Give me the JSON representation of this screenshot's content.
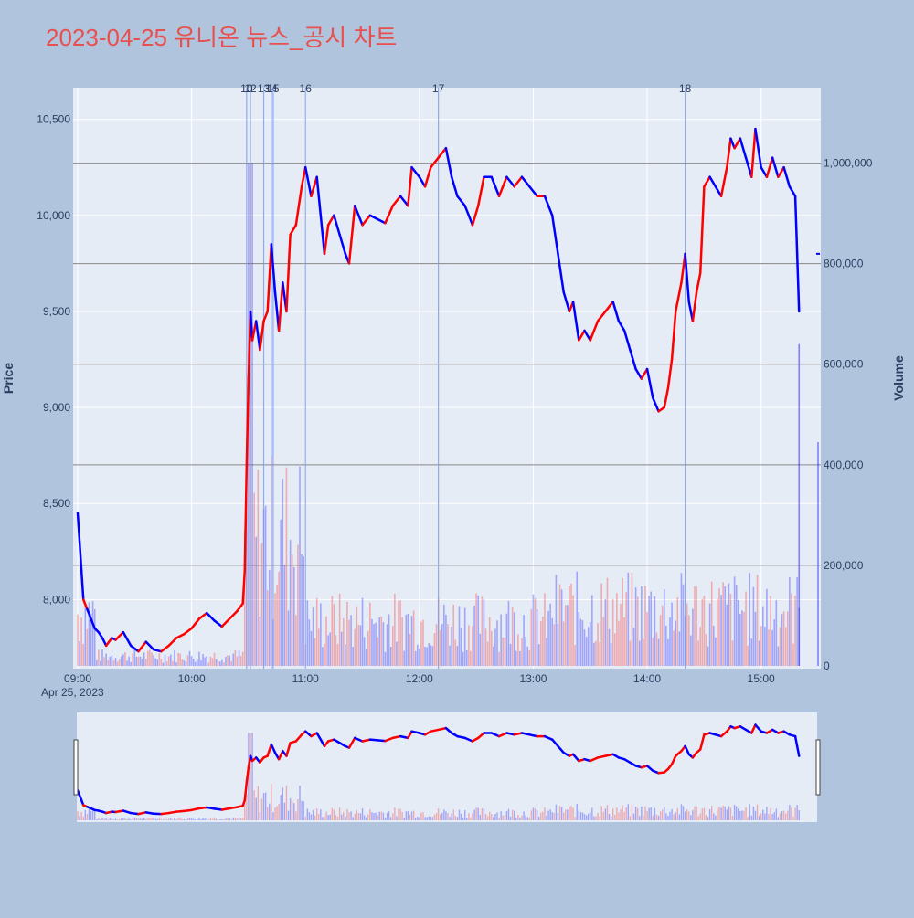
{
  "chart_data": {
    "type": "candlestick",
    "title": "2023-04-25 유니온 뉴스_공시 차트",
    "date_label": "Apr 25, 2023",
    "xlabel": "",
    "ylabel": "Price",
    "y2label": "Volume",
    "x_range": [
      "09:00",
      "15:30"
    ],
    "x_ticks": [
      "09:00",
      "10:00",
      "11:00",
      "12:00",
      "13:00",
      "14:00",
      "15:00"
    ],
    "ylim": [
      7650,
      10660
    ],
    "y_ticks": [
      8000,
      8500,
      9000,
      9500,
      10000,
      10500
    ],
    "y_tick_labels": [
      "8,000",
      "8,500",
      "9,000",
      "9,500",
      "10,000",
      "10,500"
    ],
    "y2lim": [
      0,
      1150000
    ],
    "y2_ticks": [
      0,
      200000,
      400000,
      600000,
      800000,
      1000000
    ],
    "y2_tick_labels": [
      "0",
      "200,000",
      "400,000",
      "600,000",
      "800,000",
      "1,000,000"
    ],
    "volume_gridlines": [
      0,
      200000,
      400000,
      600000,
      800000,
      1000000
    ],
    "news_markers": [
      {
        "time": "10:29",
        "label": "10"
      },
      {
        "time": "10:31",
        "label": "12"
      },
      {
        "time": "10:38",
        "label": "13"
      },
      {
        "time": "10:42",
        "label": "14"
      },
      {
        "time": "10:43",
        "label": "15"
      },
      {
        "time": "11:00",
        "label": "16"
      },
      {
        "time": "12:10",
        "label": "17"
      },
      {
        "time": "14:20",
        "label": "18"
      }
    ],
    "series_points": [
      [
        "09:00",
        8450,
        "down"
      ],
      [
        "09:01",
        8300,
        "down"
      ],
      [
        "09:02",
        8150,
        "down"
      ],
      [
        "09:03",
        8000,
        "down"
      ],
      [
        "09:05",
        7950,
        "up"
      ],
      [
        "09:07",
        7900,
        "down"
      ],
      [
        "09:09",
        7850,
        "down"
      ],
      [
        "09:11",
        7830,
        "down"
      ],
      [
        "09:13",
        7800,
        "down"
      ],
      [
        "09:15",
        7760,
        "down"
      ],
      [
        "09:18",
        7800,
        "up"
      ],
      [
        "09:20",
        7790,
        "down"
      ],
      [
        "09:24",
        7830,
        "up"
      ],
      [
        "09:28",
        7760,
        "down"
      ],
      [
        "09:32",
        7730,
        "down"
      ],
      [
        "09:36",
        7780,
        "up"
      ],
      [
        "09:40",
        7740,
        "down"
      ],
      [
        "09:44",
        7730,
        "down"
      ],
      [
        "09:48",
        7760,
        "up"
      ],
      [
        "09:52",
        7800,
        "up"
      ],
      [
        "09:56",
        7820,
        "up"
      ],
      [
        "10:00",
        7850,
        "up"
      ],
      [
        "10:04",
        7900,
        "up"
      ],
      [
        "10:08",
        7930,
        "up"
      ],
      [
        "10:12",
        7890,
        "down"
      ],
      [
        "10:16",
        7860,
        "down"
      ],
      [
        "10:20",
        7900,
        "up"
      ],
      [
        "10:24",
        7940,
        "up"
      ],
      [
        "10:27",
        7980,
        "up"
      ],
      [
        "10:28",
        8150,
        "up"
      ],
      [
        "10:29",
        8700,
        "up"
      ],
      [
        "10:30",
        9150,
        "up"
      ],
      [
        "10:31",
        9500,
        "up"
      ],
      [
        "10:32",
        9350,
        "down"
      ],
      [
        "10:34",
        9450,
        "up"
      ],
      [
        "10:36",
        9300,
        "down"
      ],
      [
        "10:38",
        9450,
        "up"
      ],
      [
        "10:40",
        9500,
        "up"
      ],
      [
        "10:42",
        9850,
        "up"
      ],
      [
        "10:44",
        9600,
        "down"
      ],
      [
        "10:46",
        9400,
        "down"
      ],
      [
        "10:48",
        9650,
        "up"
      ],
      [
        "10:50",
        9500,
        "down"
      ],
      [
        "10:52",
        9900,
        "up"
      ],
      [
        "10:55",
        9950,
        "up"
      ],
      [
        "10:58",
        10150,
        "up"
      ],
      [
        "11:00",
        10250,
        "up"
      ],
      [
        "11:03",
        10100,
        "down"
      ],
      [
        "11:06",
        10200,
        "up"
      ],
      [
        "11:08",
        10000,
        "down"
      ],
      [
        "11:10",
        9800,
        "down"
      ],
      [
        "11:12",
        9950,
        "up"
      ],
      [
        "11:15",
        10000,
        "up"
      ],
      [
        "11:18",
        9900,
        "down"
      ],
      [
        "11:21",
        9800,
        "down"
      ],
      [
        "11:23",
        9750,
        "down"
      ],
      [
        "11:26",
        10050,
        "up"
      ],
      [
        "11:30",
        9950,
        "down"
      ],
      [
        "11:34",
        10000,
        "up"
      ],
      [
        "11:38",
        9980,
        "down"
      ],
      [
        "11:42",
        9960,
        "down"
      ],
      [
        "11:46",
        10050,
        "up"
      ],
      [
        "11:50",
        10100,
        "up"
      ],
      [
        "11:54",
        10050,
        "down"
      ],
      [
        "11:56",
        10250,
        "up"
      ],
      [
        "12:00",
        10200,
        "down"
      ],
      [
        "12:03",
        10150,
        "down"
      ],
      [
        "12:06",
        10250,
        "up"
      ],
      [
        "12:10",
        10300,
        "up"
      ],
      [
        "12:14",
        10350,
        "up"
      ],
      [
        "12:17",
        10200,
        "down"
      ],
      [
        "12:20",
        10100,
        "down"
      ],
      [
        "12:24",
        10050,
        "down"
      ],
      [
        "12:28",
        9950,
        "down"
      ],
      [
        "12:31",
        10050,
        "up"
      ],
      [
        "12:34",
        10200,
        "up"
      ],
      [
        "12:38",
        10200,
        "down"
      ],
      [
        "12:42",
        10100,
        "down"
      ],
      [
        "12:46",
        10200,
        "up"
      ],
      [
        "12:50",
        10150,
        "down"
      ],
      [
        "12:54",
        10200,
        "up"
      ],
      [
        "12:58",
        10150,
        "down"
      ],
      [
        "13:02",
        10100,
        "down"
      ],
      [
        "13:06",
        10100,
        "up"
      ],
      [
        "13:10",
        10000,
        "down"
      ],
      [
        "13:13",
        9800,
        "down"
      ],
      [
        "13:16",
        9600,
        "down"
      ],
      [
        "13:19",
        9500,
        "down"
      ],
      [
        "13:21",
        9550,
        "up"
      ],
      [
        "13:24",
        9350,
        "down"
      ],
      [
        "13:27",
        9400,
        "up"
      ],
      [
        "13:30",
        9350,
        "down"
      ],
      [
        "13:34",
        9450,
        "up"
      ],
      [
        "13:38",
        9500,
        "up"
      ],
      [
        "13:42",
        9550,
        "up"
      ],
      [
        "13:45",
        9450,
        "down"
      ],
      [
        "13:48",
        9400,
        "down"
      ],
      [
        "13:51",
        9300,
        "down"
      ],
      [
        "13:54",
        9200,
        "down"
      ],
      [
        "13:57",
        9150,
        "down"
      ],
      [
        "14:00",
        9200,
        "up"
      ],
      [
        "14:03",
        9050,
        "down"
      ],
      [
        "14:06",
        8980,
        "down"
      ],
      [
        "14:09",
        9000,
        "up"
      ],
      [
        "14:11",
        9100,
        "up"
      ],
      [
        "14:13",
        9250,
        "up"
      ],
      [
        "14:15",
        9500,
        "up"
      ],
      [
        "14:18",
        9650,
        "up"
      ],
      [
        "14:20",
        9800,
        "up"
      ],
      [
        "14:22",
        9550,
        "down"
      ],
      [
        "14:24",
        9450,
        "down"
      ],
      [
        "14:26",
        9600,
        "up"
      ],
      [
        "14:28",
        9700,
        "up"
      ],
      [
        "14:30",
        10150,
        "up"
      ],
      [
        "14:33",
        10200,
        "up"
      ],
      [
        "14:36",
        10150,
        "down"
      ],
      [
        "14:39",
        10100,
        "down"
      ],
      [
        "14:42",
        10250,
        "up"
      ],
      [
        "14:44",
        10400,
        "up"
      ],
      [
        "14:46",
        10350,
        "down"
      ],
      [
        "14:49",
        10400,
        "up"
      ],
      [
        "14:52",
        10300,
        "down"
      ],
      [
        "14:55",
        10200,
        "down"
      ],
      [
        "14:57",
        10450,
        "up"
      ],
      [
        "15:00",
        10250,
        "down"
      ],
      [
        "15:03",
        10200,
        "down"
      ],
      [
        "15:06",
        10300,
        "up"
      ],
      [
        "15:09",
        10200,
        "down"
      ],
      [
        "15:12",
        10250,
        "up"
      ],
      [
        "15:15",
        10150,
        "down"
      ],
      [
        "15:18",
        10100,
        "down"
      ],
      [
        "15:19",
        9800,
        "down"
      ],
      [
        "15:20",
        9500,
        "down"
      ]
    ],
    "last_tick": [
      "15:30",
      9800
    ],
    "colors": {
      "background": "#b0c4de",
      "plot_bg": "#e5ecf6",
      "up": "#ff0000",
      "down": "#0000ff",
      "title": "#e8504f",
      "news_line": "#7d99e6",
      "volume_grid": "#888888"
    }
  }
}
